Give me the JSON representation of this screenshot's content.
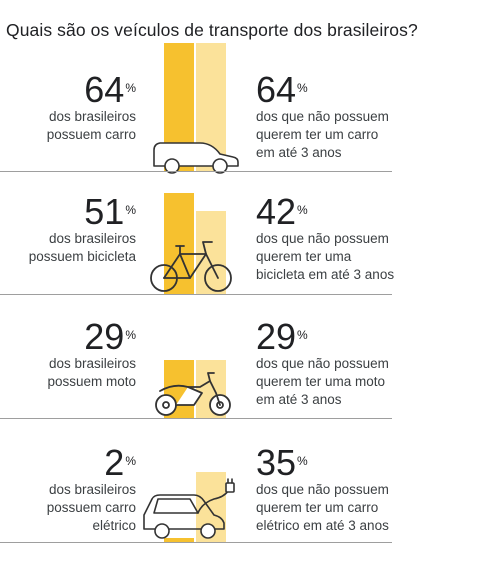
{
  "title": "Quais são os veículos de transporte dos brasileiros?",
  "colors": {
    "owns": "#F6C12F",
    "wants": "#FBE29A",
    "outline": "#333333",
    "divider": "#9e9e9e"
  },
  "chart_data": {
    "type": "bar",
    "title": "Quais são os veículos de transporte dos brasileiros?",
    "categories": [
      "carro",
      "bicicleta",
      "moto",
      "carro elétrico"
    ],
    "series": [
      {
        "values": [
          64,
          51,
          29,
          2
        ]
      },
      {
        "values": [
          64,
          42,
          29,
          35
        ]
      }
    ],
    "ylim": [
      0,
      100
    ]
  },
  "rows": [
    {
      "icon": "car-icon",
      "owns_value": "64",
      "owns_text": [
        "dos brasileiros",
        "possuem carro"
      ],
      "wants_value": "64",
      "wants_text": [
        "dos que não possuem",
        "querem ter um carro",
        "em até 3 anos"
      ]
    },
    {
      "icon": "bicycle-icon",
      "owns_value": "51",
      "owns_text": [
        "dos brasileiros",
        "possuem bicicleta"
      ],
      "wants_value": "42",
      "wants_text": [
        "dos que não possuem",
        "querem ter uma",
        "bicicleta em até 3 anos"
      ]
    },
    {
      "icon": "motorcycle-icon",
      "owns_value": "29",
      "owns_text": [
        "dos brasileiros",
        "possuem moto"
      ],
      "wants_value": "29",
      "wants_text": [
        "dos que não possuem",
        "querem ter uma moto",
        "em até 3 anos"
      ]
    },
    {
      "icon": "electric-car-icon",
      "owns_value": "2",
      "owns_text": [
        "dos brasileiros",
        "possuem carro",
        "elétrico"
      ],
      "wants_value": "35",
      "wants_text": [
        "dos que não possuem",
        "querem ter um carro",
        "elétrico em até 3 anos"
      ]
    }
  ],
  "percent_sign": "%"
}
